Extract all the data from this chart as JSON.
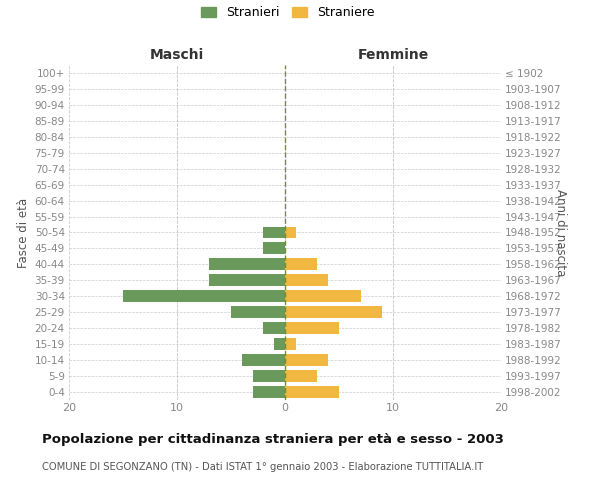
{
  "age_groups": [
    "0-4",
    "5-9",
    "10-14",
    "15-19",
    "20-24",
    "25-29",
    "30-34",
    "35-39",
    "40-44",
    "45-49",
    "50-54",
    "55-59",
    "60-64",
    "65-69",
    "70-74",
    "75-79",
    "80-84",
    "85-89",
    "90-94",
    "95-99",
    "100+"
  ],
  "birth_years": [
    "1998-2002",
    "1993-1997",
    "1988-1992",
    "1983-1987",
    "1978-1982",
    "1973-1977",
    "1968-1972",
    "1963-1967",
    "1958-1962",
    "1953-1957",
    "1948-1952",
    "1943-1947",
    "1938-1942",
    "1933-1937",
    "1928-1932",
    "1923-1927",
    "1918-1922",
    "1913-1917",
    "1908-1912",
    "1903-1907",
    "≤ 1902"
  ],
  "males": [
    3,
    3,
    4,
    1,
    2,
    5,
    15,
    7,
    7,
    2,
    2,
    0,
    0,
    0,
    0,
    0,
    0,
    0,
    0,
    0,
    0
  ],
  "females": [
    5,
    3,
    4,
    1,
    5,
    9,
    7,
    4,
    3,
    0,
    1,
    0,
    0,
    0,
    0,
    0,
    0,
    0,
    0,
    0,
    0
  ],
  "male_color": "#6a9a5b",
  "female_color": "#f0b840",
  "title": "Popolazione per cittadinanza straniera per età e sesso - 2003",
  "subtitle": "COMUNE DI SEGONZANO (TN) - Dati ISTAT 1° gennaio 2003 - Elaborazione TUTTITALIA.IT",
  "legend_male": "Stranieri",
  "legend_female": "Straniere",
  "xlabel_left": "Maschi",
  "xlabel_right": "Femmine",
  "ylabel_left": "Fasce di età",
  "ylabel_right": "Anni di nascita",
  "xlim": 20,
  "bg_color": "#ffffff",
  "grid_color": "#cccccc",
  "text_color": "#888888",
  "axis_text_color": "#555555"
}
